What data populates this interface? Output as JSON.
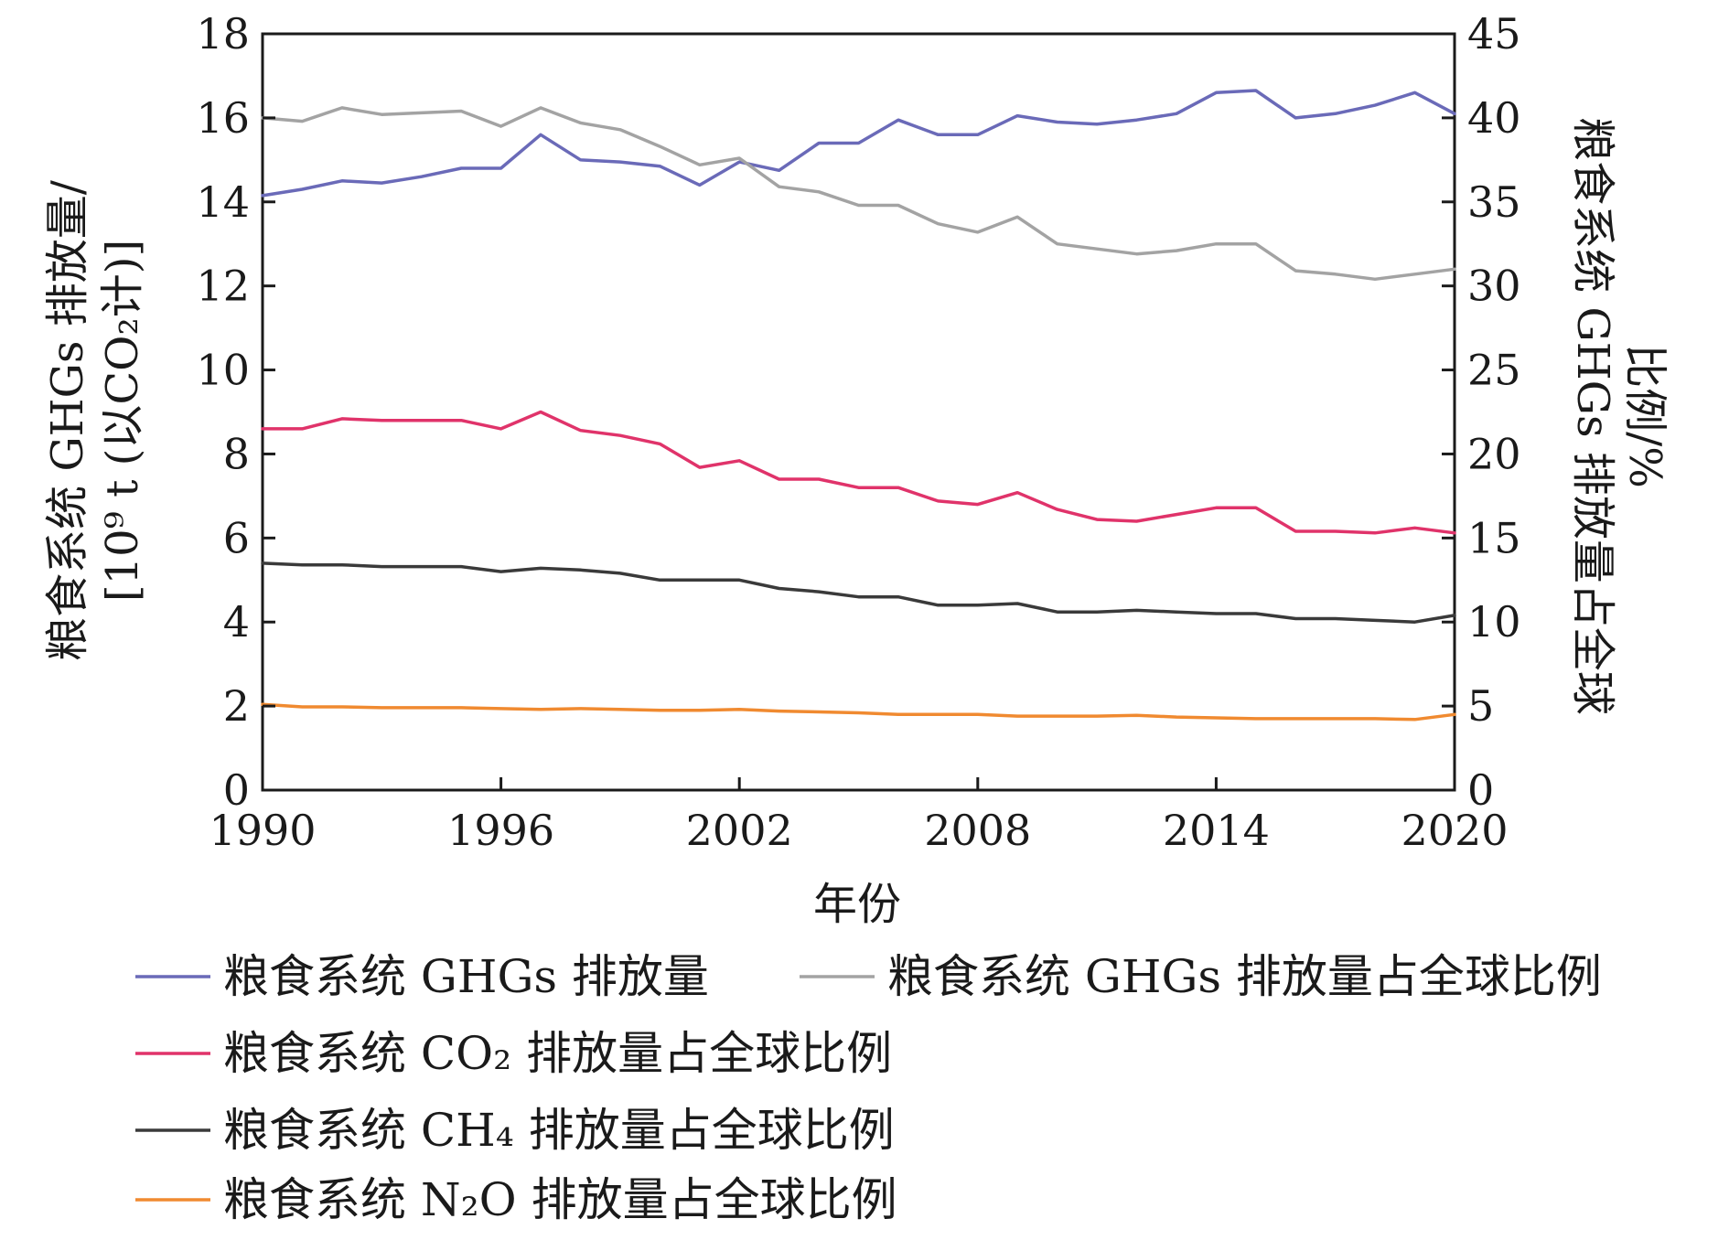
{
  "chart_data": {
    "type": "line",
    "title": "",
    "xlabel": "年份",
    "ylabel_left_line1": "粮食系统 GHGs 排放量/",
    "ylabel_left_line2": "[10⁹ t (以CO₂计)]",
    "ylabel_right_line1": "粮食系统 GHGs 排放量占全球",
    "ylabel_right_line2": "比例/%",
    "xlim": [
      1990,
      2020
    ],
    "ylim_left": [
      0,
      18
    ],
    "ylim_right": [
      0,
      45
    ],
    "x_ticks": [
      "1990",
      "1996",
      "2002",
      "2008",
      "2014",
      "2020"
    ],
    "y_left_ticks": [
      "0",
      "2",
      "4",
      "6",
      "8",
      "10",
      "12",
      "14",
      "16",
      "18"
    ],
    "y_right_ticks": [
      "0",
      "5",
      "10",
      "15",
      "20",
      "25",
      "30",
      "35",
      "40",
      "45"
    ],
    "grid": false,
    "legend_position": "bottom",
    "x": [
      1990,
      1991,
      1992,
      1993,
      1994,
      1995,
      1996,
      1997,
      1998,
      1999,
      2000,
      2001,
      2002,
      2003,
      2004,
      2005,
      2006,
      2007,
      2008,
      2009,
      2010,
      2011,
      2012,
      2013,
      2014,
      2015,
      2016,
      2017,
      2018,
      2019,
      2020
    ],
    "series": [
      {
        "name": "粮食系统 GHGs 排放量",
        "axis": "left",
        "color": "#6a6ab8",
        "values": [
          14.15,
          14.3,
          14.5,
          14.45,
          14.6,
          14.8,
          14.8,
          15.6,
          15.0,
          14.95,
          14.85,
          14.4,
          14.95,
          14.75,
          15.4,
          15.4,
          15.95,
          15.6,
          15.6,
          16.05,
          15.9,
          15.85,
          15.95,
          16.1,
          16.6,
          16.65,
          16.0,
          16.1,
          16.3,
          16.6,
          16.1
        ]
      },
      {
        "name": "粮食系统 GHGs 排放量占全球比例",
        "axis": "right",
        "color": "#a3a3a3",
        "values": [
          40.0,
          39.8,
          40.6,
          40.2,
          40.3,
          40.4,
          39.5,
          40.6,
          39.7,
          39.3,
          38.3,
          37.2,
          37.6,
          35.9,
          35.6,
          34.8,
          34.8,
          33.7,
          33.2,
          34.1,
          32.5,
          32.2,
          31.9,
          32.1,
          32.5,
          32.5,
          30.9,
          30.7,
          30.4,
          30.7,
          31.0
        ]
      },
      {
        "name": "粮食系统 CO₂ 排放量占全球比例",
        "axis": "right",
        "color": "#e0336a",
        "values": [
          21.5,
          21.5,
          22.1,
          22.0,
          22.0,
          22.0,
          21.5,
          22.5,
          21.4,
          21.1,
          20.6,
          19.2,
          19.6,
          18.5,
          18.5,
          18.0,
          18.0,
          17.2,
          17.0,
          17.7,
          16.7,
          16.1,
          16.0,
          16.4,
          16.8,
          16.8,
          15.4,
          15.4,
          15.3,
          15.6,
          15.3
        ]
      },
      {
        "name": "粮食系统 CH₄ 排放量占全球比例",
        "axis": "right",
        "color": "#3a3a3a",
        "values": [
          13.5,
          13.4,
          13.4,
          13.3,
          13.3,
          13.3,
          13.0,
          13.2,
          13.1,
          12.9,
          12.5,
          12.5,
          12.5,
          12.0,
          11.8,
          11.5,
          11.5,
          11.0,
          11.0,
          11.1,
          10.6,
          10.6,
          10.7,
          10.6,
          10.5,
          10.5,
          10.2,
          10.2,
          10.1,
          10.0,
          10.4
        ]
      },
      {
        "name": "粮食系统 N₂O 排放量占全球比例",
        "axis": "right",
        "color": "#f08a30",
        "values": [
          5.1,
          4.95,
          4.95,
          4.9,
          4.9,
          4.9,
          4.85,
          4.8,
          4.85,
          4.8,
          4.75,
          4.75,
          4.8,
          4.7,
          4.65,
          4.6,
          4.5,
          4.5,
          4.5,
          4.4,
          4.4,
          4.4,
          4.45,
          4.35,
          4.3,
          4.25,
          4.25,
          4.25,
          4.25,
          4.2,
          4.5
        ]
      }
    ]
  }
}
